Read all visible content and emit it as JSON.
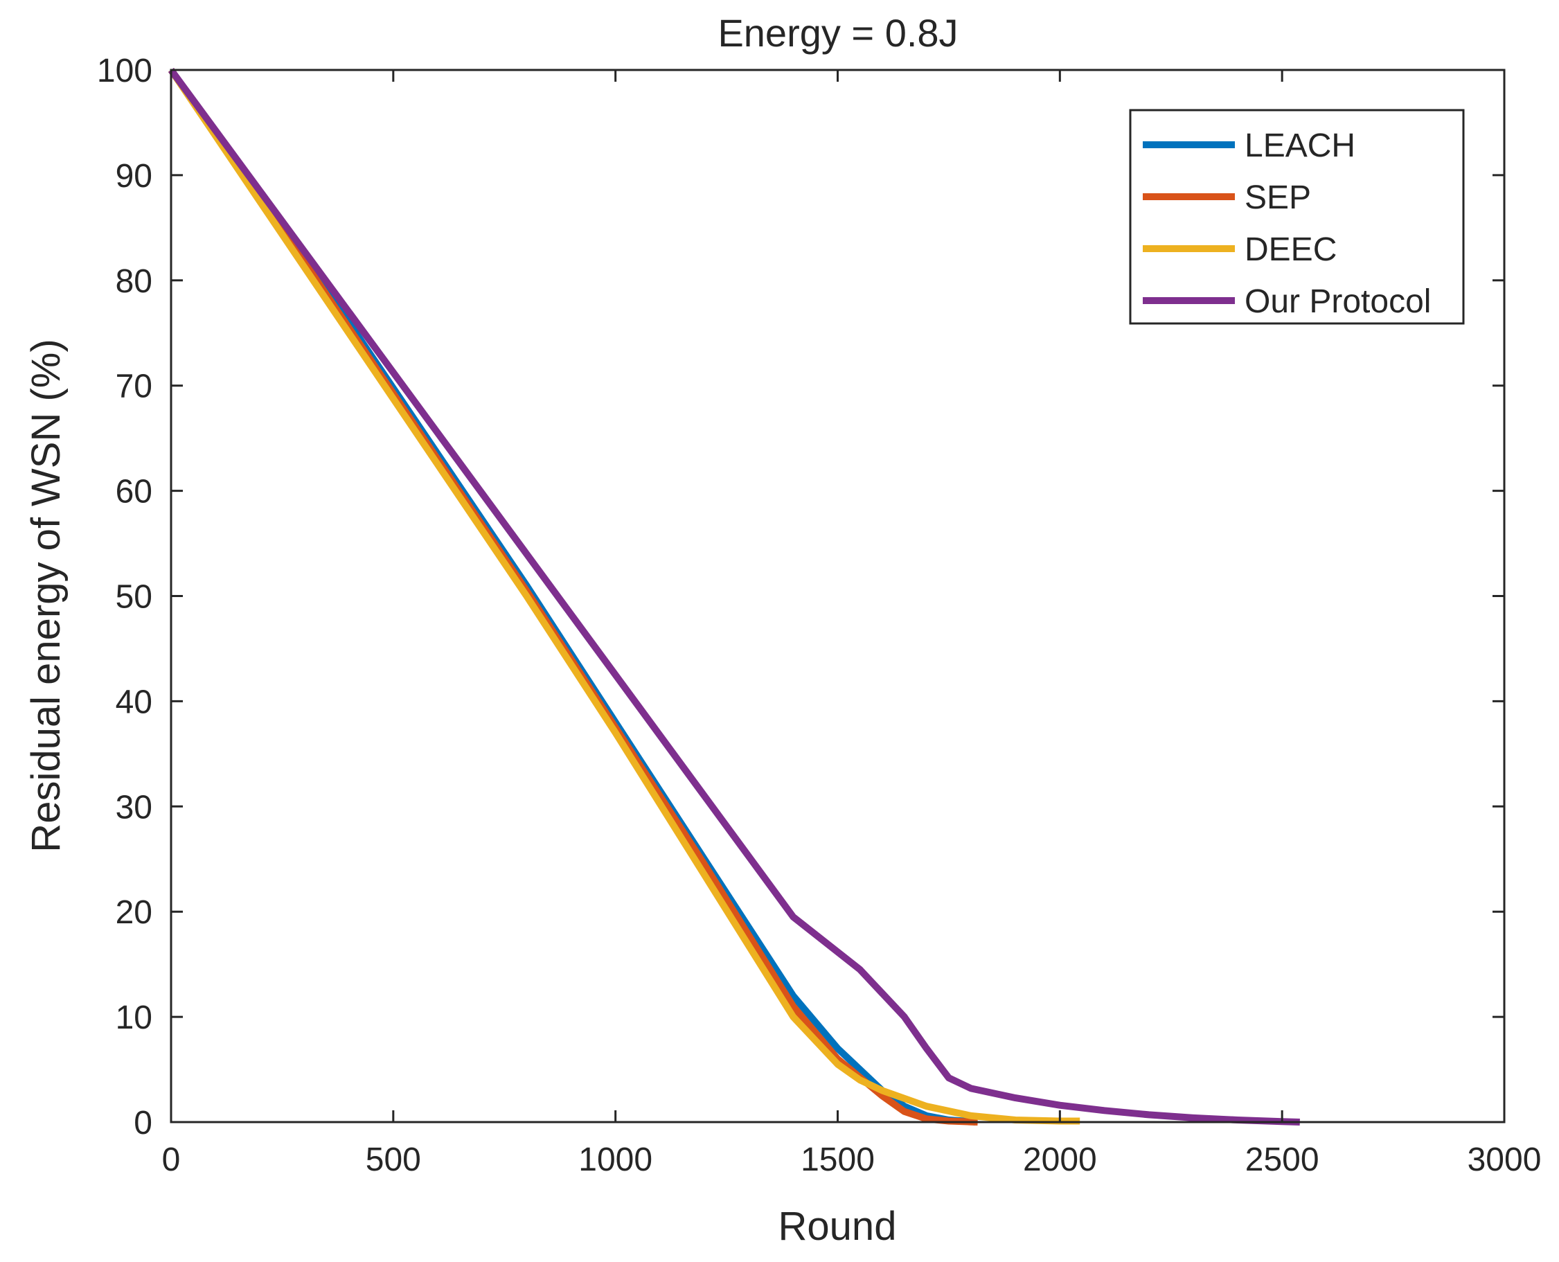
{
  "chart_data": {
    "type": "line",
    "title": "Energy = 0.8J",
    "xlabel": "Round",
    "ylabel": "Residual energy of WSN (%)",
    "xlim": [
      0,
      3000
    ],
    "ylim": [
      0,
      100
    ],
    "xticks": [
      0,
      500,
      1000,
      1500,
      2000,
      2500,
      3000
    ],
    "yticks": [
      0,
      10,
      20,
      30,
      40,
      50,
      60,
      70,
      80,
      90,
      100
    ],
    "xtick_labels": [
      "0",
      "500",
      "1000",
      "1500",
      "2000",
      "2500",
      "3000"
    ],
    "ytick_labels": [
      "0",
      "10",
      "20",
      "30",
      "40",
      "50",
      "60",
      "70",
      "80",
      "90",
      "100"
    ],
    "grid": false,
    "legend_position": "top-right",
    "series": [
      {
        "name": "LEACH",
        "color": "#0072BD",
        "x": [
          0,
          200,
          400,
          600,
          800,
          1000,
          1200,
          1400,
          1500,
          1600,
          1650,
          1700,
          1750,
          1800,
          1810
        ],
        "y": [
          100,
          88,
          76,
          63.5,
          51,
          38,
          25,
          12,
          7,
          3,
          1.5,
          0.6,
          0.2,
          0.05,
          0
        ]
      },
      {
        "name": "SEP",
        "color": "#D95319",
        "x": [
          0,
          200,
          400,
          600,
          800,
          1000,
          1200,
          1400,
          1500,
          1600,
          1650,
          1700,
          1750,
          1800,
          1815
        ],
        "y": [
          100,
          88,
          75.5,
          63,
          50.5,
          37.5,
          24.5,
          11,
          6,
          2.5,
          1,
          0.3,
          0.1,
          0.02,
          0
        ]
      },
      {
        "name": "DEEC",
        "color": "#EDB120",
        "x": [
          0,
          200,
          400,
          600,
          800,
          1000,
          1200,
          1400,
          1500,
          1550,
          1600,
          1700,
          1800,
          1900,
          2000,
          2045
        ],
        "y": [
          100,
          87.5,
          75,
          62.5,
          50,
          37,
          23.5,
          10,
          5.5,
          4,
          3,
          1.5,
          0.6,
          0.2,
          0.1,
          0.1
        ]
      },
      {
        "name": "Our Protocol",
        "color": "#7E2F8E",
        "x": [
          0,
          200,
          400,
          600,
          800,
          1000,
          1200,
          1400,
          1550,
          1650,
          1700,
          1750,
          1800,
          1900,
          2000,
          2100,
          2200,
          2300,
          2400,
          2500,
          2540
        ],
        "y": [
          100,
          88.5,
          77,
          65.5,
          54,
          42.5,
          31,
          19.5,
          14.5,
          10,
          7,
          4.2,
          3.2,
          2.3,
          1.6,
          1.1,
          0.7,
          0.4,
          0.2,
          0.05,
          0
        ]
      }
    ]
  }
}
